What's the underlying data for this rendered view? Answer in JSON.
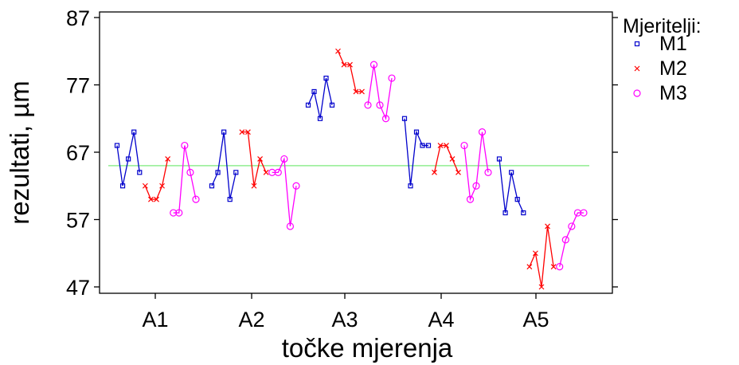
{
  "chart_data": {
    "type": "line",
    "xlabel": "točke mjerenja",
    "ylabel": "rezultati, µm",
    "ylim": [
      47,
      87
    ],
    "yticks": [
      47,
      57,
      67,
      77,
      87
    ],
    "categories": [
      "A1",
      "A2",
      "A3",
      "A4",
      "A5"
    ],
    "reference_line": {
      "value": 65,
      "color": "#90ee90"
    },
    "grid": false,
    "legend": {
      "title": "Mjeritelji:",
      "placement": "right",
      "entries": [
        "M1",
        "M2",
        "M3"
      ]
    },
    "series": [
      {
        "name": "M1",
        "color": "#0000cc",
        "marker": "square",
        "groups": [
          [
            68,
            62,
            66,
            70,
            64
          ],
          [
            62,
            64,
            70,
            60,
            64
          ],
          [
            74,
            76,
            72,
            78,
            74
          ],
          [
            72,
            62,
            70,
            68,
            68
          ],
          [
            66,
            58,
            64,
            60,
            58
          ]
        ]
      },
      {
        "name": "M2",
        "color": "#ff0000",
        "marker": "x",
        "groups": [
          [
            62,
            60,
            60,
            62,
            66
          ],
          [
            70,
            70,
            62,
            66,
            64
          ],
          [
            82,
            80,
            80,
            76,
            76
          ],
          [
            64,
            68,
            68,
            66,
            64
          ],
          [
            50,
            52,
            47,
            56,
            50
          ]
        ]
      },
      {
        "name": "M3",
        "color": "#ff00ff",
        "marker": "circle",
        "groups": [
          [
            58,
            58,
            68,
            64,
            60
          ],
          [
            64,
            64,
            66,
            56,
            62
          ],
          [
            74,
            80,
            74,
            72,
            78
          ],
          [
            68,
            60,
            62,
            70,
            64
          ],
          [
            50,
            54,
            56,
            58,
            58
          ]
        ]
      }
    ]
  }
}
